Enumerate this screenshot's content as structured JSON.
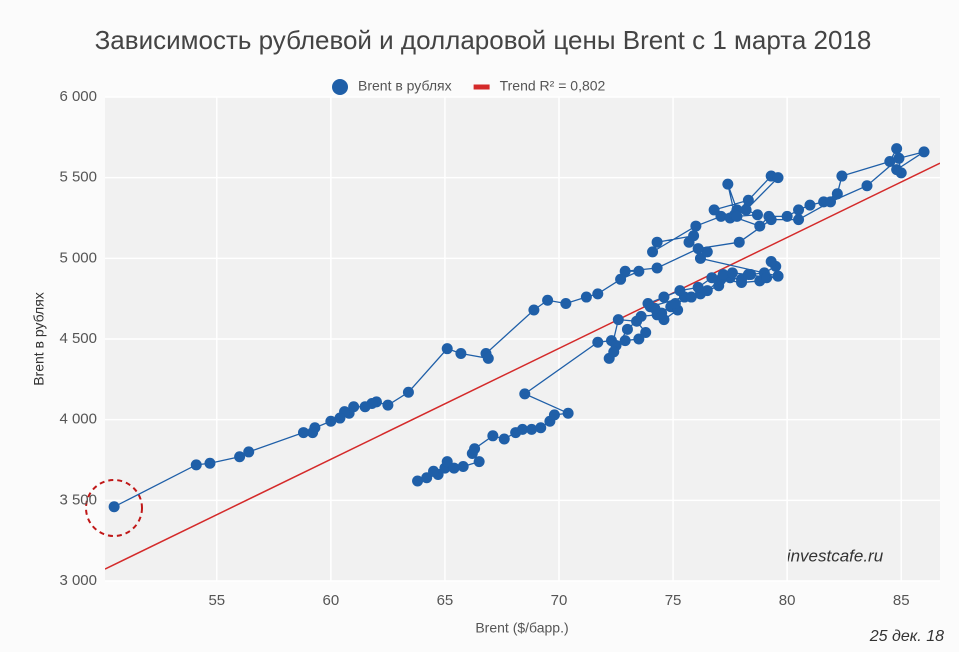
{
  "chart_data": {
    "type": "scatter",
    "title": "Зависимость рублевой и долларовой цены Brent с 1 марта 2018",
    "x_label": "Brent ($/барр.)",
    "y_label": "Brent в рублях",
    "annotations": [
      "investcafe.ru",
      "25 дек. 18"
    ],
    "xlim": [
      50.1,
      86.7
    ],
    "xticks": [
      55,
      60,
      65,
      70,
      75,
      80,
      85
    ],
    "ylim": [
      3000,
      6000
    ],
    "yticks": [
      {
        "value": 3000,
        "label": "3 000"
      },
      {
        "value": 3500,
        "label": "3 500"
      },
      {
        "value": 4000,
        "label": "4 000"
      },
      {
        "value": 4500,
        "label": "4 500"
      },
      {
        "value": 5000,
        "label": "5 000"
      },
      {
        "value": 5500,
        "label": "5 500"
      },
      {
        "value": 6000,
        "label": "6 000"
      }
    ],
    "grid": true,
    "legend": "top",
    "series": [
      {
        "name": "Brent в рублях",
        "color": "#1f5fa8",
        "x": [
          63.8,
          64.2,
          64.7,
          64.5,
          65,
          65.1,
          65.4,
          65.8,
          66.5,
          66.2,
          66.3,
          67.1,
          67.6,
          68.1,
          68.4,
          68.8,
          69.2,
          69.6,
          69.8,
          70.4,
          68.5,
          71.7,
          72.3,
          72.5,
          72.9,
          73.5,
          73.8,
          73.4,
          72.6,
          72.2,
          72.4,
          73,
          73.6,
          74.3,
          74.9,
          75.2,
          74.6,
          74,
          75.5,
          76.2,
          77,
          77.5,
          78,
          78.4,
          79,
          79.5,
          79.3,
          79.6,
          78.8,
          78,
          77.1,
          76.5,
          75.8,
          75.1,
          74.5,
          74.2,
          73.9,
          74.6,
          75.3,
          76.1,
          76.7,
          77.2,
          77.6,
          78.3,
          79.1,
          79.6,
          76.2,
          76.5,
          75.7,
          75.9,
          74.3,
          74.1,
          76,
          77.1,
          77.5,
          77.8,
          77.4,
          77.7,
          79.3,
          79.6,
          78.2,
          78.7,
          77.8,
          78.3,
          76.8,
          78.8,
          79.2,
          80,
          80.5,
          81,
          81.6,
          82.2,
          82.4,
          84.5,
          84.8,
          85,
          84.8,
          86,
          84.9,
          83.5,
          81.9,
          80.5,
          79.3,
          77.9,
          76.1,
          74.3,
          72.9,
          73.5,
          72.7,
          71.7,
          71.2,
          70.3,
          69.5,
          68.9,
          66.8,
          66.9,
          65.7,
          65.1,
          63.4,
          62.5,
          62,
          61.8,
          61.5,
          61,
          60.8,
          60.6,
          60.4,
          60,
          59.3,
          59.2,
          58.8,
          56.4,
          56,
          54.7,
          54.1,
          50.5
        ],
        "values": [
          3620,
          3640,
          3660,
          3680,
          3700,
          3740,
          3700,
          3710,
          3740,
          3790,
          3820,
          3900,
          3880,
          3920,
          3940,
          3940,
          3950,
          3990,
          4030,
          4040,
          4160,
          4480,
          4490,
          4460,
          4490,
          4500,
          4540,
          4610,
          4620,
          4380,
          4420,
          4560,
          4640,
          4650,
          4700,
          4680,
          4620,
          4700,
          4760,
          4780,
          4830,
          4880,
          4870,
          4900,
          4910,
          4950,
          4980,
          4890,
          4860,
          4850,
          4870,
          4800,
          4760,
          4720,
          4660,
          4690,
          4720,
          4760,
          4800,
          4820,
          4880,
          4900,
          4910,
          4900,
          4880,
          4890,
          5000,
          5040,
          5100,
          5140,
          5100,
          5040,
          5200,
          5260,
          5250,
          5300,
          5460,
          5270,
          5510,
          5500,
          5300,
          5270,
          5260,
          5360,
          5300,
          5200,
          5260,
          5260,
          5300,
          5330,
          5350,
          5400,
          5510,
          5600,
          5680,
          5530,
          5550,
          5660,
          5620,
          5450,
          5350,
          5240,
          5240,
          5100,
          5060,
          4940,
          4920,
          4920,
          4870,
          4780,
          4760,
          4720,
          4740,
          4680,
          4410,
          4380,
          4410,
          4440,
          4170,
          4090,
          4110,
          4100,
          4080,
          4080,
          4040,
          4050,
          4010,
          3990,
          3950,
          3920,
          3920,
          3800,
          3770,
          3730,
          3720,
          3460
        ]
      },
      {
        "name": "Trend R² = 0,802",
        "color": "#d42a2a",
        "x": [
          50.1,
          86.7
        ],
        "values": [
          3074,
          5590
        ]
      }
    ]
  }
}
